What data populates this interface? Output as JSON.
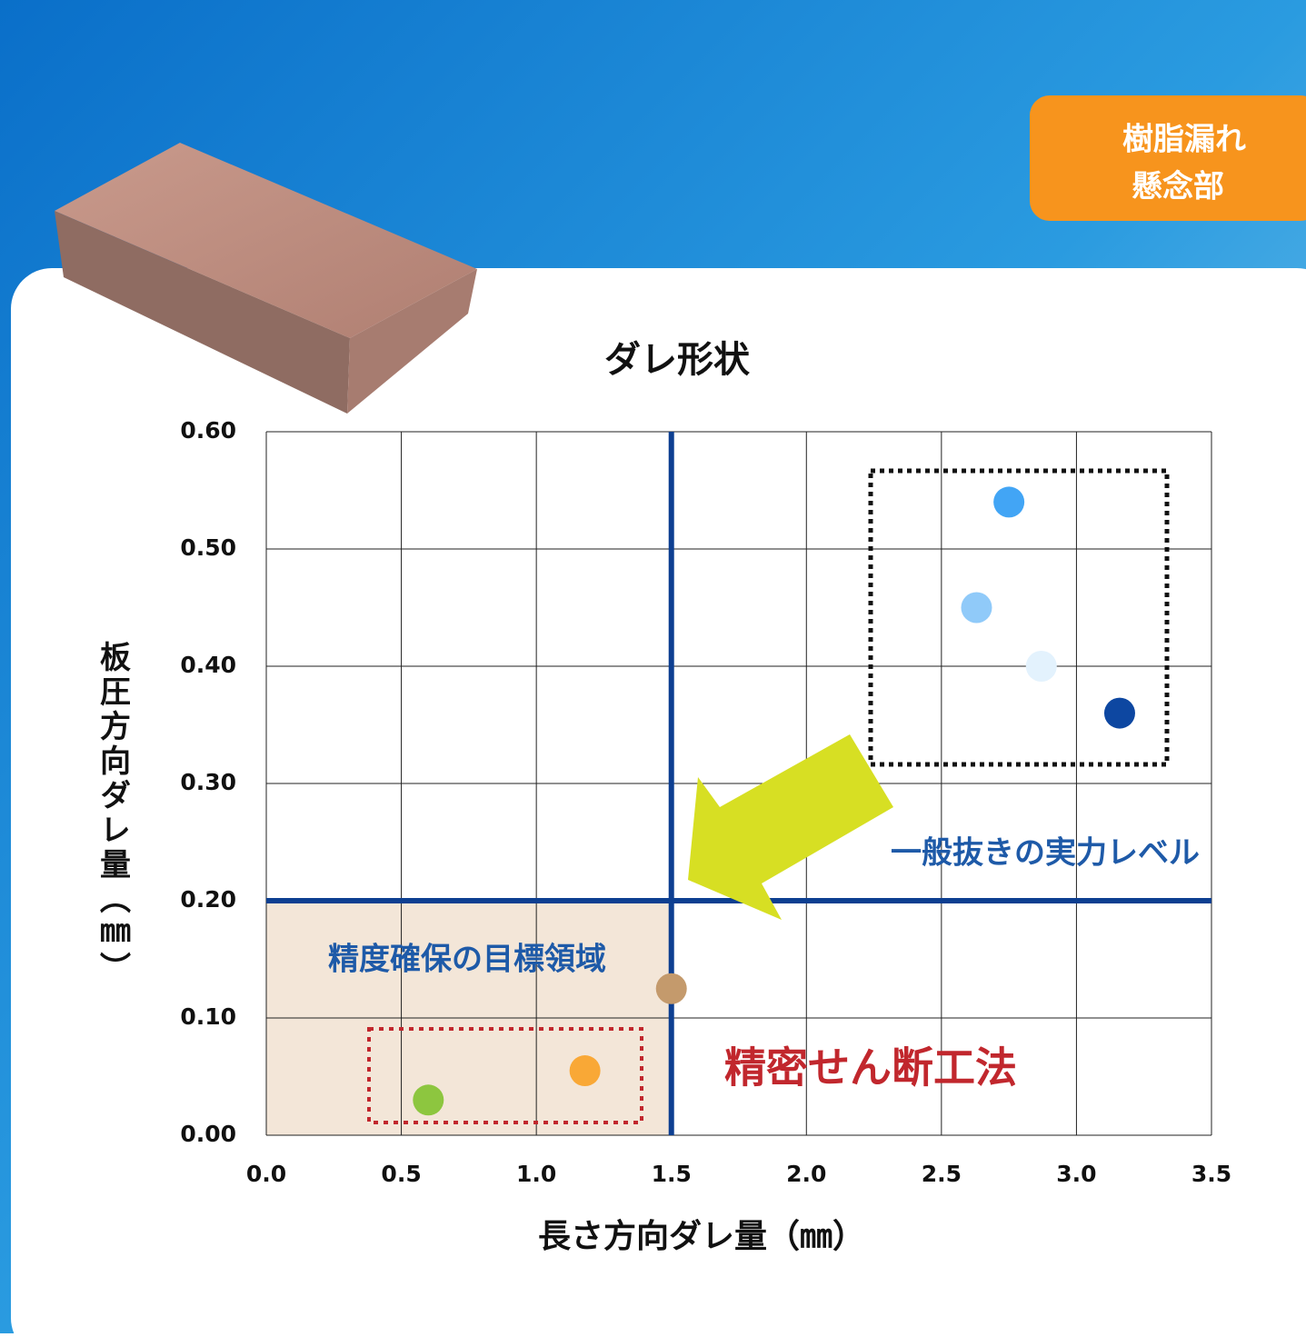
{
  "badge": [
    "樹脂漏れ",
    "懸念部"
  ],
  "chart_data": {
    "type": "scatter",
    "title": "ダレ形状",
    "x_label": "長さ方向ダレ量（㎜）",
    "y_label": "板圧方向ダレ量（㎜）",
    "x": [
      2.75,
      2.63,
      2.87,
      3.16,
      1.5,
      1.18,
      0.6
    ],
    "values": [
      0.54,
      0.45,
      0.4,
      0.36,
      0.125,
      0.055,
      0.03
    ],
    "colors": [
      "#42a5f5",
      "#90caf9",
      "#e3f2fd",
      "#0d47a1",
      "#c49a6c",
      "#f9a836",
      "#8dc63f"
    ],
    "xlim": [
      0,
      3.5
    ],
    "ylim": [
      0,
      0.6
    ],
    "xticks": [
      {
        "value": 0,
        "label": "0.0"
      },
      0.5,
      {
        "value": 1,
        "label": "1.0"
      },
      1.5,
      {
        "value": 2,
        "label": "2.0"
      },
      2.5,
      {
        "value": 3,
        "label": "3.0"
      },
      3.5
    ],
    "yticks": [
      {
        "value": 0,
        "label": "0.00"
      },
      {
        "value": 0.1,
        "label": "0.10"
      },
      {
        "value": 0.2,
        "label": "0.20"
      },
      {
        "value": 0.3,
        "label": "0.30"
      },
      {
        "value": 0.4,
        "label": "0.40"
      },
      {
        "value": 0.5,
        "label": "0.50"
      },
      {
        "value": 0.6,
        "label": "0.60"
      }
    ],
    "grid": true,
    "reference_lines": {
      "x": 1.5,
      "y": 0.2
    },
    "annotations": [
      "一般抜きの実力レベル",
      "精度確保の目標領域",
      "精密せん断工法"
    ]
  }
}
